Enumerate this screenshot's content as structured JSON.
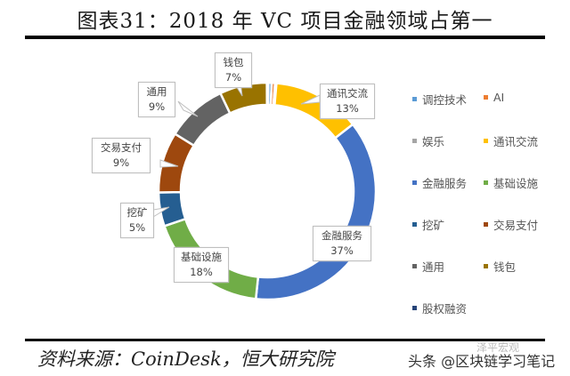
{
  "title": "图表31：2018 年 VC 项目金融领域占第一",
  "source": "资料来源：CoinDesk，恒大研究院",
  "watermark": "头条 @区块链学习笔记",
  "watermark_faint": "泽平宏观",
  "chart_data": {
    "type": "pie",
    "subtype": "donut",
    "title": "图表31：2018 年 VC 项目金融领域占第一",
    "start_angle_deg": 0,
    "direction": "clockwise",
    "categories": [
      "调控技术",
      "AI",
      "娱乐",
      "通讯交流",
      "金融服务",
      "基础设施",
      "挖矿",
      "交易支付",
      "通用",
      "钱包",
      "股权融资"
    ],
    "values": [
      0.5,
      0.5,
      0.2,
      13,
      37,
      18,
      5,
      9,
      9,
      7,
      0.2
    ],
    "labeled_values": {
      "通讯交流": "13%",
      "金融服务": "37%",
      "基础设施": "18%",
      "挖矿": "5%",
      "交易支付": "9%",
      "通用": "9%",
      "钱包": "7%"
    },
    "colors": [
      "#5B9BD5",
      "#ED7D31",
      "#A5A5A5",
      "#FFC000",
      "#4472C4",
      "#70AD47",
      "#255E91",
      "#9E480E",
      "#636363",
      "#997300",
      "#264478"
    ],
    "legend_position": "right"
  },
  "labels": {
    "wallet": {
      "name": "钱包",
      "pct": "7%"
    },
    "comm": {
      "name": "通讯交流",
      "pct": "13%"
    },
    "general": {
      "name": "通用",
      "pct": "9%"
    },
    "trade": {
      "name": "交易支付",
      "pct": "9%"
    },
    "mining": {
      "name": "挖矿",
      "pct": "5%"
    },
    "infra": {
      "name": "基础设施",
      "pct": "18%"
    },
    "finance": {
      "name": "金融服务",
      "pct": "37%"
    }
  },
  "legend": [
    {
      "label": "调控技术",
      "color": "#5B9BD5"
    },
    {
      "label": "AI",
      "color": "#ED7D31"
    },
    {
      "label": "娱乐",
      "color": "#A5A5A5"
    },
    {
      "label": "通讯交流",
      "color": "#FFC000"
    },
    {
      "label": "金融服务",
      "color": "#4472C4"
    },
    {
      "label": "基础设施",
      "color": "#70AD47"
    },
    {
      "label": "挖矿",
      "color": "#255E91"
    },
    {
      "label": "交易支付",
      "color": "#9E480E"
    },
    {
      "label": "通用",
      "color": "#636363"
    },
    {
      "label": "钱包",
      "color": "#997300"
    },
    {
      "label": "股权融资",
      "color": "#264478"
    }
  ]
}
